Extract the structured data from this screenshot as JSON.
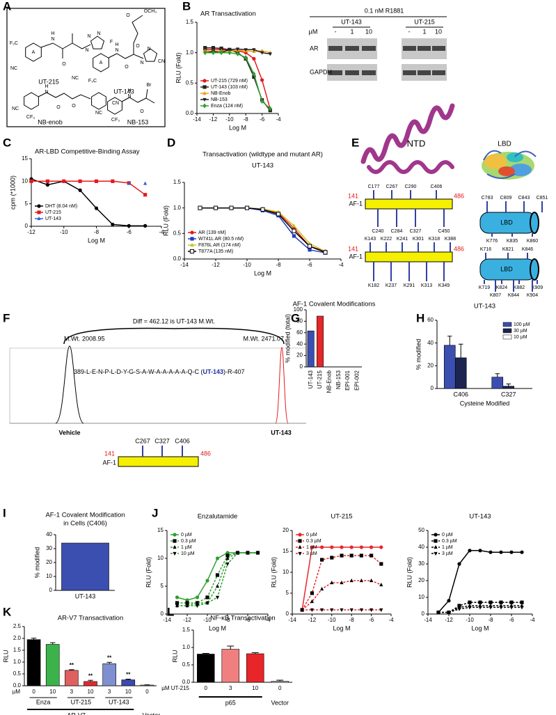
{
  "panel_labels": [
    "A",
    "B",
    "C",
    "D",
    "E",
    "F",
    "G",
    "H",
    "I",
    "J",
    "K",
    "L"
  ],
  "structures": [
    {
      "name": "UT-215",
      "labels": [
        "F₃C",
        "A",
        "NC",
        "H",
        "N",
        "O",
        "N",
        "N",
        "F"
      ]
    },
    {
      "name": "UT-143",
      "labels": [
        "N",
        "A",
        "F₃C",
        "NC",
        "H",
        "N",
        "O",
        "O",
        "O",
        "OCH₃",
        "N",
        "N",
        "CN"
      ]
    },
    {
      "name": "NB-enob",
      "labels": [
        "H",
        "N",
        "O",
        "O",
        "NC",
        "CF₃",
        "CN"
      ]
    },
    {
      "name": "NB-153",
      "labels": [
        "H",
        "N",
        "O",
        "Br",
        "NC",
        "CF₃"
      ]
    }
  ],
  "blot": {
    "treatment": "0.1 nM R1881",
    "groups": [
      "UT-143",
      "UT-215"
    ],
    "dose_unit": "µM",
    "doses": [
      "-",
      "1",
      "10",
      "-",
      "1",
      "10"
    ],
    "proteins": [
      "AR",
      "GAPDH"
    ]
  },
  "domains": {
    "ntd_title": "NTD",
    "lbd_title": "LBD",
    "af1": [
      "AF-1",
      "AF-1"
    ],
    "start": [
      "141",
      "141"
    ],
    "end": [
      "486",
      "486"
    ],
    "ntd_cys_top": [
      "C177",
      "C267",
      "C290",
      "C406"
    ],
    "ntd_cys_bottom": [
      "C240",
      "C284",
      "C327",
      "C450"
    ],
    "ntd_lys_top": [
      "K143",
      "K222",
      "K241",
      "K301",
      "K318",
      "K388"
    ],
    "ntd_lys_bottom": [
      "K182",
      "K237",
      "K291",
      "K313",
      "K349"
    ],
    "lbd_label": [
      "LBD",
      "LBD"
    ],
    "lbd_cys_top": [
      "C783",
      "C809",
      "C843",
      "C851"
    ],
    "lbd_lys_1": [
      "K776",
      "K835",
      "K860"
    ],
    "lbd_lys_2": [
      "K716",
      "K821",
      "K846"
    ],
    "lbd_lys_3": [
      "K719",
      "K824",
      "K882",
      "K909"
    ],
    "lbd_lys_4": [
      "K807",
      "K844",
      "K904"
    ]
  },
  "mass_spec": {
    "diff": "Diff = 462.12 is UT-143 M.Wt.",
    "mw_left": "M.Wt. 2008.95",
    "mw_right": "M.Wt. 2471.07",
    "sequence": "389-L-E-N-P-L-D-Y-G-S-A-W-A-A-A-A-A-Q-C (",
    "adduct": "UT-143",
    "sequence_end": ")-R-407",
    "left_label": "Vehicle",
    "right_label": "UT-143",
    "af1": {
      "sites": [
        "C267",
        "C327",
        "C406"
      ],
      "start": "141",
      "end": "486",
      "label": "AF-1"
    }
  },
  "chart_data": [
    {
      "type": "line",
      "title": "AR Transactivation",
      "ylabel": "RLU (Fold)",
      "xlabel": "Log M",
      "x": [
        -13,
        -12,
        -11,
        -10,
        -9,
        -8,
        -7,
        -6,
        -5
      ],
      "xlim": [
        -14,
        -4
      ],
      "xticks": [
        -14,
        -12,
        -10,
        -8,
        -6,
        -4
      ],
      "ylim": [
        0,
        1.5
      ],
      "yticks": [
        {
          "value": 0,
          "label": "0.0"
        },
        {
          "value": 0.5,
          "label": "0.5"
        },
        {
          "value": 1,
          "label": "1.0"
        },
        {
          "value": 1.5,
          "label": "1.5"
        }
      ],
      "legend": "lower left",
      "series": [
        {
          "name": "UT-215 (729 nM)",
          "color": "#e31a1c",
          "marker": "circle",
          "values": [
            1.05,
            1.05,
            1.05,
            1.04,
            1.03,
            1.0,
            0.9,
            0.55,
            0.07
          ]
        },
        {
          "name": "UT-143 (103 nM)",
          "color": "#222222",
          "marker": "square",
          "values": [
            1.08,
            1.08,
            1.07,
            1.05,
            1.0,
            0.9,
            0.6,
            0.22,
            0.05
          ]
        },
        {
          "name": "NB-Enob",
          "color": "#f39c12",
          "marker": "triangle",
          "values": [
            1.03,
            1.02,
            1.03,
            1.02,
            1.04,
            1.03,
            1.02,
            1.03,
            1.0
          ]
        },
        {
          "name": "NB-153",
          "color": "#222222",
          "marker": "triangle-down",
          "values": [
            1.0,
            1.02,
            1.0,
            1.05,
            1.06,
            1.05,
            1.05,
            1.0,
            0.98
          ]
        },
        {
          "name": "Enza (124 nM)",
          "color": "#2ca02c",
          "marker": "diamond",
          "values": [
            1.0,
            1.0,
            1.0,
            1.0,
            0.98,
            0.92,
            0.65,
            0.2,
            0.08
          ]
        }
      ]
    },
    {
      "type": "line",
      "title": "AR-LBD Competitive-Binding Assay",
      "ylabel": "cpm (*1000)",
      "xlabel": "Log M",
      "x": [
        -12,
        -11,
        -10,
        -9,
        -8,
        -7,
        -6,
        -5
      ],
      "xlim": [
        -12,
        -4
      ],
      "xticks": [
        -12,
        -10,
        -8,
        -6,
        -4
      ],
      "ylim": [
        0,
        15
      ],
      "yticks": [
        0,
        5,
        10,
        15
      ],
      "legend": "lower left",
      "series": [
        {
          "name": "DHT (8.04 nM)",
          "color": "#000000",
          "marker": "circle",
          "values": [
            10.5,
            9.2,
            10,
            8,
            4,
            0.4,
            0.1,
            0.1
          ]
        },
        {
          "name": "UT-215",
          "color": "#e31a1c",
          "marker": "square",
          "values": [
            10,
            10,
            10,
            10,
            10,
            10,
            9.6,
            7
          ]
        },
        {
          "name": "UT-143",
          "color": "#3060d0",
          "marker": "triangle",
          "line": false,
          "values": [
            null,
            null,
            null,
            null,
            null,
            null,
            9.5,
            9.5
          ]
        }
      ]
    },
    {
      "type": "line",
      "title": "Transactivation (wildtype and mutant AR)",
      "subtitle": "UT-143",
      "ylabel": "RLU (Fold)",
      "xlabel": "Log M",
      "x": [
        -13,
        -12,
        -11,
        -10,
        -9,
        -8,
        -7,
        -6,
        -5
      ],
      "xlim": [
        -14,
        -4
      ],
      "xticks": [
        -14,
        -12,
        -10,
        -8,
        -6,
        -4
      ],
      "ylim": [
        0,
        1.5
      ],
      "yticks": [
        {
          "value": 0,
          "label": "0.0"
        },
        {
          "value": 0.5,
          "label": "0.5"
        },
        {
          "value": 1,
          "label": "1.0"
        },
        {
          "value": 1.5,
          "label": "1.5"
        }
      ],
      "legend": "lower left",
      "series": [
        {
          "name": "AR (139 nM)",
          "color": "#e31a1c",
          "marker": "circle",
          "values": [
            1,
            1,
            1,
            1,
            0.98,
            0.9,
            0.6,
            0.25,
            0.15
          ]
        },
        {
          "name": "W741L AR (80.5 nM)",
          "color": "#1f3fbf",
          "marker": "square",
          "values": [
            1,
            1,
            1,
            1,
            0.95,
            0.85,
            0.45,
            0.18,
            0.12
          ]
        },
        {
          "name": "F876L AR (174 nM)",
          "color": "#c8c020",
          "marker": "triangle",
          "values": [
            1,
            1,
            1,
            1,
            0.98,
            0.92,
            0.65,
            0.3,
            0.15
          ]
        },
        {
          "name": "T877A (135 nM)",
          "color": "#000000",
          "marker": "open-square",
          "values": [
            1,
            1,
            1,
            1,
            0.97,
            0.88,
            0.55,
            0.25,
            0.13
          ]
        }
      ]
    },
    {
      "type": "bar",
      "title": "AF-1 Covalent Modifications",
      "ylabel": "% modified (total)",
      "categories": [
        "UT-143",
        "UT-215",
        "NB-Enob",
        "NB-153",
        "EPI-001",
        "EPI-002"
      ],
      "values": [
        63,
        89,
        0,
        0,
        0,
        0
      ],
      "colors": [
        "#3a4fb0",
        "#e8262a",
        "#3a4fb0",
        "#3a4fb0",
        "#3a4fb0",
        "#3a4fb0"
      ],
      "ylim": [
        0,
        100
      ],
      "yticks": [
        0,
        20,
        40,
        60,
        80,
        100
      ]
    },
    {
      "type": "bar",
      "title": "UT-143",
      "ylabel": "% modified",
      "xlabel": "Cysteine Modified",
      "categories": [
        "C406",
        "C327"
      ],
      "legend": "upper right",
      "series": [
        {
          "name": "100 µM",
          "color": "#3a4fb0",
          "values": [
            38,
            10
          ],
          "errors": [
            8,
            3
          ]
        },
        {
          "name": "30 µM",
          "color": "#1c2550",
          "values": [
            27,
            2
          ],
          "errors": [
            12,
            2
          ]
        },
        {
          "name": "10 µM",
          "color": "#ffffff",
          "values": [
            0,
            0
          ]
        }
      ],
      "ylim": [
        0,
        60
      ],
      "yticks": [
        0,
        20,
        40,
        60
      ]
    },
    {
      "type": "bar",
      "title": [
        "AF-1 Covalent Modification",
        "in Cells (C406)"
      ],
      "ylabel": "% modified",
      "categories": [
        "UT-143"
      ],
      "values": [
        34
      ],
      "colors": [
        "#3a4fb0"
      ],
      "ylim": [
        0,
        40
      ],
      "yticks": [
        0,
        10,
        20,
        30,
        40
      ]
    },
    {
      "type": "line",
      "title": "Enzalutamide",
      "ylabel": "RLU (Fold)",
      "xlabel": "Log M",
      "x": [
        -13,
        -12,
        -11,
        -10,
        -9,
        -8,
        -7,
        -6,
        -5
      ],
      "xlim": [
        -14,
        -4
      ],
      "xticks": [
        -14,
        -12,
        -10,
        -8,
        -6,
        -4
      ],
      "ylim": [
        0,
        15
      ],
      "yticks": [
        0,
        5,
        10,
        15
      ],
      "legend": "upper left",
      "series": [
        {
          "name": "0 µM",
          "color": "#2ca02c",
          "marker": "circle",
          "values": [
            3,
            2.5,
            3,
            6,
            10,
            11,
            11,
            11,
            11
          ]
        },
        {
          "name": "0.3 µM",
          "color": "#2ca02c",
          "marker": "square",
          "dash": true,
          "values": [
            2,
            2,
            2,
            3,
            7,
            10.5,
            11,
            11,
            11
          ]
        },
        {
          "name": "1 µM",
          "color": "#2ca02c",
          "marker": "triangle",
          "dash": true,
          "values": [
            1.5,
            1.5,
            2,
            2,
            5,
            10,
            11,
            11,
            11
          ]
        },
        {
          "name": "10 µM",
          "color": "#2ca02c",
          "marker": "triangle-down",
          "dash": true,
          "values": [
            1.5,
            1.5,
            1.5,
            2,
            3,
            9,
            11,
            11,
            11
          ]
        }
      ]
    },
    {
      "type": "line",
      "title": "UT-215",
      "ylabel": "RLU (Fold)",
      "xlabel": "Log M",
      "x": [
        -13,
        -12,
        -11,
        -10,
        -9,
        -8,
        -7,
        -6,
        -5
      ],
      "xlim": [
        -14,
        -4
      ],
      "xticks": [
        -14,
        -12,
        -10,
        -8,
        -6,
        -4
      ],
      "ylim": [
        0,
        20
      ],
      "yticks": [
        0,
        5,
        10,
        15,
        20
      ],
      "legend": "upper left",
      "series": [
        {
          "name": "0 µM",
          "color": "#e8262a",
          "marker": "circle",
          "values": [
            1,
            16,
            16,
            16,
            16,
            16,
            16,
            16,
            16
          ]
        },
        {
          "name": "0.3 µM",
          "color": "#e8262a",
          "marker": "square",
          "dash": true,
          "values": [
            1,
            5,
            13,
            13.5,
            14,
            14,
            14,
            14,
            12
          ]
        },
        {
          "name": "1 µM",
          "color": "#e8262a",
          "marker": "triangle",
          "dash": true,
          "values": [
            1,
            3,
            6,
            7.5,
            7.5,
            8,
            8,
            8,
            7
          ]
        },
        {
          "name": "3 µM",
          "color": "#e8262a",
          "marker": "triangle-down",
          "dash": true,
          "values": [
            1,
            1,
            1,
            1,
            1,
            1,
            1,
            1,
            1
          ]
        }
      ]
    },
    {
      "type": "line",
      "title": "UT-143",
      "ylabel": "RLU (Fold)",
      "xlabel": "Log M",
      "x": [
        -13,
        -12,
        -11,
        -10,
        -9,
        -8,
        -7,
        -6,
        -5
      ],
      "xlim": [
        -14,
        -4
      ],
      "xticks": [
        -14,
        -12,
        -10,
        -8,
        -6,
        -4
      ],
      "ylim": [
        0,
        50
      ],
      "yticks": [
        0,
        10,
        20,
        30,
        40,
        50
      ],
      "legend": "upper left",
      "series": [
        {
          "name": "0 µM",
          "color": "#000000",
          "marker": "circle",
          "values": [
            1,
            8,
            30,
            38,
            38,
            37,
            37,
            37,
            37
          ]
        },
        {
          "name": "0.3 µM",
          "color": "#000000",
          "marker": "square",
          "dash": true,
          "values": [
            1,
            1,
            5,
            7,
            7,
            7,
            7,
            7,
            7
          ]
        },
        {
          "name": "1 µM",
          "color": "#000000",
          "marker": "triangle",
          "dash": true,
          "values": [
            1,
            1,
            4,
            5,
            5,
            5,
            5,
            5,
            5
          ]
        },
        {
          "name": "3 µM",
          "color": "#000000",
          "marker": "triangle-down",
          "dash": true,
          "values": [
            1,
            1,
            3,
            4,
            4,
            4,
            4,
            4,
            4
          ]
        }
      ]
    },
    {
      "type": "bar",
      "title": "AR-V7 Transactivation",
      "ylabel": "RLU",
      "categories": [
        "0",
        "10",
        "3",
        "10",
        "3",
        "10",
        "0"
      ],
      "values": [
        1.95,
        1.75,
        0.65,
        0.18,
        0.93,
        0.25,
        0.03
      ],
      "errors": [
        0.06,
        0.07,
        0.03,
        0.05,
        0.06,
        0.03,
        0.01
      ],
      "colors": [
        "#000000",
        "#3cb34a",
        "#e06060",
        "#e8262a",
        "#7f8fd0",
        "#3a4ab0",
        "#aaaaaa"
      ],
      "ylim": [
        0,
        2.5
      ],
      "yticks": [
        {
          "value": 0,
          "label": "0.0"
        },
        {
          "value": 0.5,
          "label": "0.5"
        },
        {
          "value": 1,
          "label": "1.0"
        },
        {
          "value": 1.5,
          "label": "1.5"
        },
        {
          "value": 2,
          "label": "2.0"
        },
        {
          "value": 2.5,
          "label": "2.5"
        }
      ],
      "annotations": [
        "**",
        "**",
        "**",
        "**"
      ],
      "dose_label": "µM",
      "groups": [
        "Enza",
        "UT-215",
        "UT-143"
      ],
      "construct": "AR-V7",
      "control": "Vector"
    },
    {
      "type": "bar",
      "title": "NF-κB Transactivation",
      "ylabel": "RLU",
      "categories": [
        "0",
        "3",
        "10",
        "0"
      ],
      "values": [
        0.81,
        0.95,
        0.82,
        0.03
      ],
      "errors": [
        0.02,
        0.09,
        0.03,
        0.03
      ],
      "colors": [
        "#000000",
        "#f08080",
        "#e8262a",
        "#cccccc"
      ],
      "ylim": [
        0,
        1.5
      ],
      "yticks": [
        {
          "value": 0,
          "label": "0.0"
        },
        {
          "value": 0.5,
          "label": "0.5"
        },
        {
          "value": 1,
          "label": "1.0"
        },
        {
          "value": 1.5,
          "label": "1.5"
        }
      ],
      "dose_label": "µM UT-215",
      "groups": [
        "p65"
      ],
      "control": "Vector"
    }
  ]
}
